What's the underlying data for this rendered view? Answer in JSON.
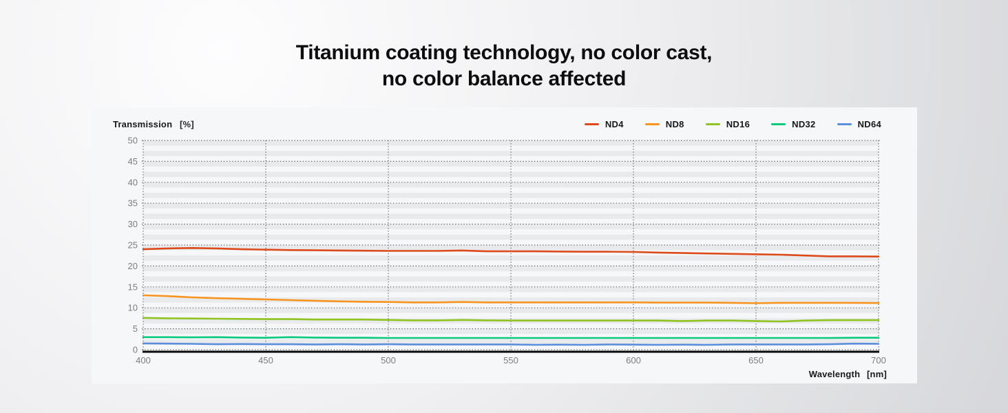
{
  "header": {
    "title_line1": "Titanium coating technology, no color cast,",
    "title_line2": "no color balance affected"
  },
  "chart": {
    "y_axis_label": "Transmission",
    "y_axis_unit": "[%]",
    "x_axis_label": "Wavelength",
    "x_axis_unit": "[nm]",
    "colors": {
      "panel_bg": "#f6f7f8",
      "stripe": "#e9eaec",
      "grid_dots": "#5f5f5f",
      "axis_line": "#0a0a0a",
      "tick_text": "#7d7d7d"
    }
  },
  "chart_data": {
    "type": "line",
    "title": "Titanium coating technology, no color cast, no color balance affected",
    "xlabel": "Wavelength [nm]",
    "ylabel": "Transmission [%]",
    "xlim": [
      400,
      700
    ],
    "ylim": [
      0,
      50
    ],
    "x_ticks": [
      400,
      450,
      500,
      550,
      600,
      650,
      700
    ],
    "y_ticks": [
      0,
      5,
      10,
      15,
      20,
      25,
      30,
      35,
      40,
      45,
      50
    ],
    "grid": "dotted",
    "legend_position": "top-right",
    "x": [
      400,
      410,
      420,
      430,
      440,
      450,
      460,
      470,
      480,
      490,
      500,
      510,
      520,
      530,
      540,
      550,
      560,
      570,
      580,
      590,
      600,
      610,
      620,
      630,
      640,
      650,
      660,
      670,
      680,
      690,
      700
    ],
    "series": [
      {
        "name": "ND4",
        "color": "#DC4A1A",
        "values": [
          24.0,
          24.2,
          24.3,
          24.2,
          24.0,
          23.9,
          23.8,
          23.75,
          23.7,
          23.65,
          23.6,
          23.6,
          23.6,
          23.7,
          23.5,
          23.5,
          23.5,
          23.45,
          23.4,
          23.4,
          23.35,
          23.2,
          23.1,
          23.0,
          22.9,
          22.8,
          22.7,
          22.5,
          22.3,
          22.3,
          22.25
        ]
      },
      {
        "name": "ND8",
        "color": "#F7941E",
        "values": [
          13.0,
          12.8,
          12.5,
          12.3,
          12.15,
          12.0,
          11.85,
          11.7,
          11.55,
          11.45,
          11.4,
          11.3,
          11.3,
          11.4,
          11.3,
          11.3,
          11.3,
          11.3,
          11.3,
          11.3,
          11.3,
          11.25,
          11.25,
          11.25,
          11.2,
          11.1,
          11.2,
          11.2,
          11.2,
          11.2,
          11.15
        ]
      },
      {
        "name": "ND16",
        "color": "#8FC31F",
        "values": [
          7.6,
          7.5,
          7.45,
          7.4,
          7.35,
          7.3,
          7.3,
          7.2,
          7.2,
          7.2,
          7.1,
          7.0,
          7.0,
          7.1,
          7.0,
          6.95,
          6.95,
          6.95,
          6.95,
          6.95,
          6.95,
          6.95,
          6.85,
          6.95,
          6.95,
          6.85,
          6.75,
          6.95,
          7.05,
          7.05,
          7.05
        ]
      },
      {
        "name": "ND32",
        "color": "#06C97B",
        "values": [
          3.0,
          3.0,
          2.95,
          3.0,
          2.9,
          2.85,
          3.0,
          2.9,
          2.85,
          2.85,
          2.8,
          2.8,
          2.8,
          2.8,
          2.8,
          2.8,
          2.8,
          2.8,
          2.8,
          2.8,
          2.8,
          2.8,
          2.8,
          2.8,
          2.8,
          2.8,
          2.8,
          2.8,
          2.8,
          2.85,
          2.85
        ]
      },
      {
        "name": "ND64",
        "color": "#5A8EDC",
        "values": [
          1.5,
          1.45,
          1.4,
          1.3,
          1.35,
          1.3,
          1.3,
          1.25,
          1.3,
          1.25,
          1.3,
          1.25,
          1.25,
          1.25,
          1.25,
          1.25,
          1.15,
          1.2,
          1.15,
          1.25,
          1.2,
          1.15,
          1.2,
          1.15,
          1.25,
          1.25,
          1.25,
          1.25,
          1.3,
          1.45,
          1.4
        ]
      }
    ]
  }
}
